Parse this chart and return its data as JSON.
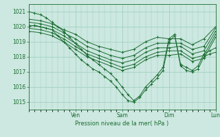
{
  "ylabel": "Pression niveau de la mer( hPa )",
  "ylim": [
    1014.5,
    1021.5
  ],
  "yticks": [
    1015,
    1016,
    1017,
    1018,
    1019,
    1020,
    1021
  ],
  "day_labels": [
    "Ven",
    "Sam",
    "Dim",
    "Lun"
  ],
  "day_ticks": [
    24,
    48,
    72,
    96
  ],
  "xlim": [
    0,
    96
  ],
  "background_color": "#cce8e0",
  "grid_color": "#99ccbb",
  "line_color": "#1a6b30",
  "series": [
    {
      "x": [
        0,
        6,
        12,
        18,
        24,
        30,
        36,
        42,
        48,
        54,
        60,
        66,
        72,
        78,
        84,
        90,
        96
      ],
      "y": [
        1020.5,
        1020.4,
        1020.2,
        1019.8,
        1019.5,
        1019.0,
        1018.7,
        1018.5,
        1018.3,
        1018.5,
        1019.0,
        1019.3,
        1019.2,
        1019.2,
        1018.8,
        1019.2,
        1020.0
      ]
    },
    {
      "x": [
        0,
        6,
        12,
        18,
        24,
        30,
        36,
        42,
        48,
        54,
        60,
        66,
        72,
        78,
        84,
        90,
        96
      ],
      "y": [
        1020.3,
        1020.2,
        1020.0,
        1019.6,
        1019.2,
        1018.7,
        1018.4,
        1018.1,
        1017.9,
        1018.1,
        1018.6,
        1018.9,
        1018.9,
        1018.9,
        1018.5,
        1018.7,
        1019.9
      ]
    },
    {
      "x": [
        0,
        6,
        12,
        18,
        24,
        30,
        36,
        42,
        48,
        54,
        60,
        66,
        72,
        78,
        84,
        90,
        96
      ],
      "y": [
        1020.1,
        1020.0,
        1019.8,
        1019.4,
        1018.9,
        1018.4,
        1018.1,
        1017.8,
        1017.6,
        1017.8,
        1018.3,
        1018.6,
        1018.6,
        1018.7,
        1018.2,
        1018.4,
        1019.7
      ]
    },
    {
      "x": [
        0,
        6,
        12,
        18,
        24,
        30,
        36,
        42,
        48,
        54,
        60,
        66,
        72,
        78,
        84,
        90,
        96
      ],
      "y": [
        1019.9,
        1019.8,
        1019.6,
        1019.2,
        1018.7,
        1018.2,
        1017.9,
        1017.6,
        1017.3,
        1017.5,
        1018.0,
        1018.3,
        1018.4,
        1018.4,
        1017.9,
        1018.1,
        1019.5
      ]
    },
    {
      "x": [
        0,
        6,
        12,
        18,
        24,
        30,
        36,
        42,
        48,
        54,
        60,
        66,
        72,
        78,
        84,
        90,
        96
      ],
      "y": [
        1019.7,
        1019.6,
        1019.4,
        1019.0,
        1018.5,
        1018.0,
        1017.7,
        1017.4,
        1017.1,
        1017.3,
        1017.8,
        1018.1,
        1018.1,
        1018.2,
        1017.7,
        1017.9,
        1019.3
      ]
    },
    {
      "x": [
        0,
        3,
        6,
        9,
        12,
        15,
        18,
        21,
        24,
        27,
        30,
        33,
        36,
        39,
        42,
        45,
        48,
        51,
        54,
        57,
        60,
        63,
        66,
        69,
        72,
        75,
        78,
        81,
        84,
        87,
        90,
        93,
        96
      ],
      "y": [
        1020.0,
        1020.1,
        1020.0,
        1019.9,
        1019.8,
        1019.4,
        1019.0,
        1018.6,
        1018.2,
        1017.8,
        1017.5,
        1017.2,
        1017.0,
        1016.7,
        1016.4,
        1016.0,
        1015.5,
        1015.1,
        1015.0,
        1015.3,
        1015.8,
        1016.2,
        1016.6,
        1017.1,
        1019.0,
        1019.4,
        1017.4,
        1017.1,
        1017.0,
        1017.2,
        1018.0,
        1018.2,
        1018.3
      ]
    },
    {
      "x": [
        0,
        3,
        6,
        9,
        12,
        15,
        18,
        21,
        24,
        27,
        30,
        33,
        36,
        39,
        42,
        45,
        48,
        51,
        54,
        57,
        60,
        63,
        66,
        69,
        72,
        75,
        78,
        81,
        84,
        87,
        90,
        93,
        96
      ],
      "y": [
        1021.0,
        1020.9,
        1020.8,
        1020.6,
        1020.3,
        1020.0,
        1019.7,
        1019.3,
        1018.9,
        1018.5,
        1018.1,
        1017.8,
        1017.5,
        1017.2,
        1016.9,
        1016.5,
        1016.0,
        1015.5,
        1015.1,
        1015.4,
        1016.0,
        1016.4,
        1016.8,
        1017.3,
        1019.2,
        1019.5,
        1017.5,
        1017.3,
        1017.1,
        1017.4,
        1018.2,
        1018.4,
        1018.6
      ]
    }
  ]
}
